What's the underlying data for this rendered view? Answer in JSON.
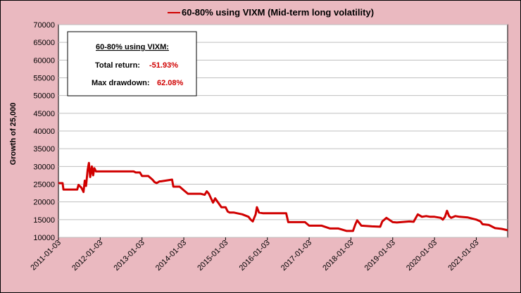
{
  "chart_data": {
    "type": "line",
    "title": "60-80% using VIXM  (Mid-term long volatility)",
    "legend": "60-80% using VIXM  (Mid-term long volatility)",
    "ylabel": "Growth of 25,000",
    "xlabel": "",
    "ylim": [
      10000,
      70000
    ],
    "yticks": [
      "70000",
      "65000",
      "60000",
      "55000",
      "50000",
      "45000",
      "40000",
      "35000",
      "30000",
      "25000",
      "20000",
      "15000",
      "10000"
    ],
    "xlim": [
      2011.0,
      2021.75
    ],
    "xticks": [
      "2011-01-03",
      "2012-01-03",
      "2013-01-03",
      "2014-01-03",
      "2015-01-03",
      "2016-01-03",
      "2017-01-03",
      "2018-01-03",
      "2019-01-03",
      "2020-01-03",
      "2021-01-03"
    ],
    "series": [
      {
        "name": "60-80% using VIXM",
        "color": "#d00000",
        "x": [
          2011.0,
          2011.1,
          2011.12,
          2011.45,
          2011.48,
          2011.55,
          2011.6,
          2011.63,
          2011.66,
          2011.7,
          2011.73,
          2011.76,
          2011.8,
          2011.83,
          2011.86,
          2011.9,
          2011.95,
          2012.3,
          2012.8,
          2012.85,
          2012.95,
          2013.0,
          2013.15,
          2013.25,
          2013.3,
          2013.35,
          2013.42,
          2013.45,
          2013.72,
          2013.75,
          2013.9,
          2014.0,
          2014.1,
          2014.4,
          2014.5,
          2014.55,
          2014.6,
          2014.7,
          2014.75,
          2014.9,
          2015.0,
          2015.05,
          2015.1,
          2015.2,
          2015.4,
          2015.55,
          2015.6,
          2015.65,
          2015.72,
          2015.75,
          2015.8,
          2015.9,
          2015.95,
          2016.0,
          2016.45,
          2016.5,
          2016.9,
          2017.0,
          2017.3,
          2017.5,
          2017.7,
          2017.9,
          2018.05,
          2018.1,
          2018.15,
          2018.25,
          2018.5,
          2018.7,
          2018.75,
          2018.85,
          2019.0,
          2019.1,
          2019.3,
          2019.4,
          2019.5,
          2019.6,
          2019.7,
          2019.8,
          2019.9,
          2020.0,
          2020.15,
          2020.2,
          2020.25,
          2020.3,
          2020.35,
          2020.4,
          2020.5,
          2020.6,
          2020.8,
          2021.0,
          2021.1,
          2021.15,
          2021.3,
          2021.45,
          2021.6,
          2021.75
        ],
        "values": [
          25300,
          25300,
          23500,
          23500,
          24800,
          24000,
          22800,
          26000,
          24500,
          29000,
          31000,
          27000,
          30000,
          27500,
          29500,
          28600,
          28600,
          28600,
          28600,
          28300,
          28300,
          27300,
          27300,
          26300,
          25600,
          25300,
          25800,
          25800,
          26300,
          24300,
          24300,
          23300,
          22300,
          22300,
          22000,
          23000,
          22300,
          19800,
          21000,
          18500,
          18500,
          17300,
          17000,
          17000,
          16500,
          15800,
          15000,
          14500,
          16500,
          18500,
          17000,
          16800,
          16800,
          16800,
          16800,
          14300,
          14300,
          13300,
          13300,
          12500,
          12500,
          11800,
          11800,
          13500,
          14800,
          13300,
          13100,
          13000,
          14500,
          15500,
          14300,
          14200,
          14400,
          14500,
          14400,
          16500,
          15800,
          16000,
          15800,
          15800,
          15500,
          15000,
          15800,
          17500,
          16000,
          15500,
          16000,
          15800,
          15600,
          15000,
          14500,
          13700,
          13500,
          12600,
          12400,
          12000
        ]
      }
    ],
    "annotation": {
      "heading": "60-80% using VIXM:",
      "total_return_label": "Total return:",
      "total_return_value": "-51.93%",
      "max_drawdown_label": "Max drawdown:",
      "max_drawdown_value": "62.08%"
    }
  }
}
